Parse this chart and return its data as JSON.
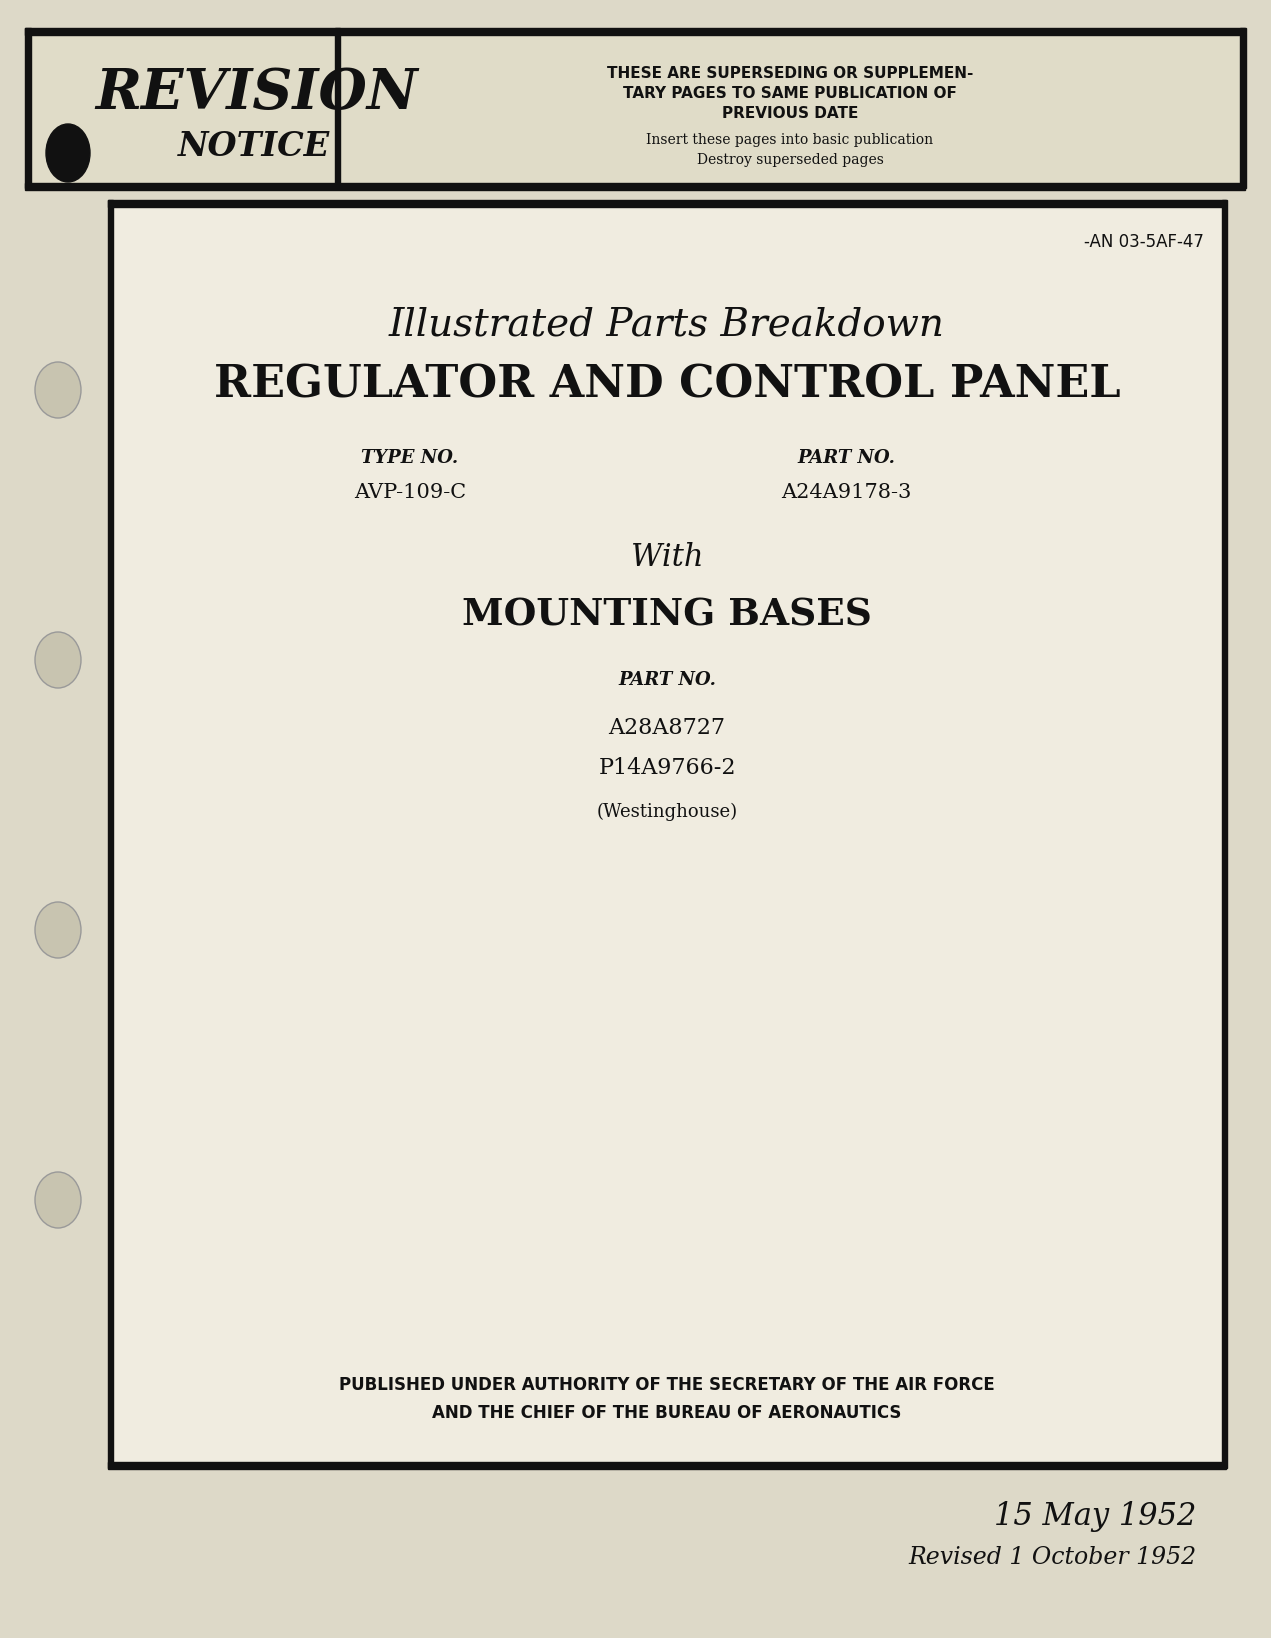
{
  "bg_color": "#ddd9c8",
  "inner_bg": "#f0ece0",
  "text_color": "#111111",
  "doc_number": "-AN 03-5AF-47",
  "title_line1": "Illustrated Parts Breakdown",
  "title_line2": "REGULATOR AND CONTROL PANEL",
  "type_label": "TYPE NO.",
  "type_value": "AVP-109-C",
  "part_label1": "PART NO.",
  "part_value1": "A24A9178-3",
  "with_text": "With",
  "mounting_title": "MOUNTING BASES",
  "part_label2": "PART NO.",
  "part_value2a": "A28A8727",
  "part_value2b": "P14A9766-2",
  "manufacturer": "(Westinghouse)",
  "published_line1": "PUBLISHED UNDER AUTHORITY OF THE SECRETARY OF THE AIR FORCE",
  "published_line2": "AND THE CHIEF OF THE BUREAU OF AERONAUTICS",
  "date1": "15 May 1952",
  "date2": "Revised 1 October 1952",
  "revision_line1": "THESE ARE SUPERSEDING OR SUPPLEMEN-",
  "revision_line2": "TARY PAGES TO SAME PUBLICATION OF",
  "revision_line3": "PREVIOUS DATE",
  "revision_line4": "Insert these pages into basic publication",
  "revision_line5": "Destroy superseded pages",
  "banner_bg": "#e0dcc8",
  "hole_color": "#c8c4b0"
}
